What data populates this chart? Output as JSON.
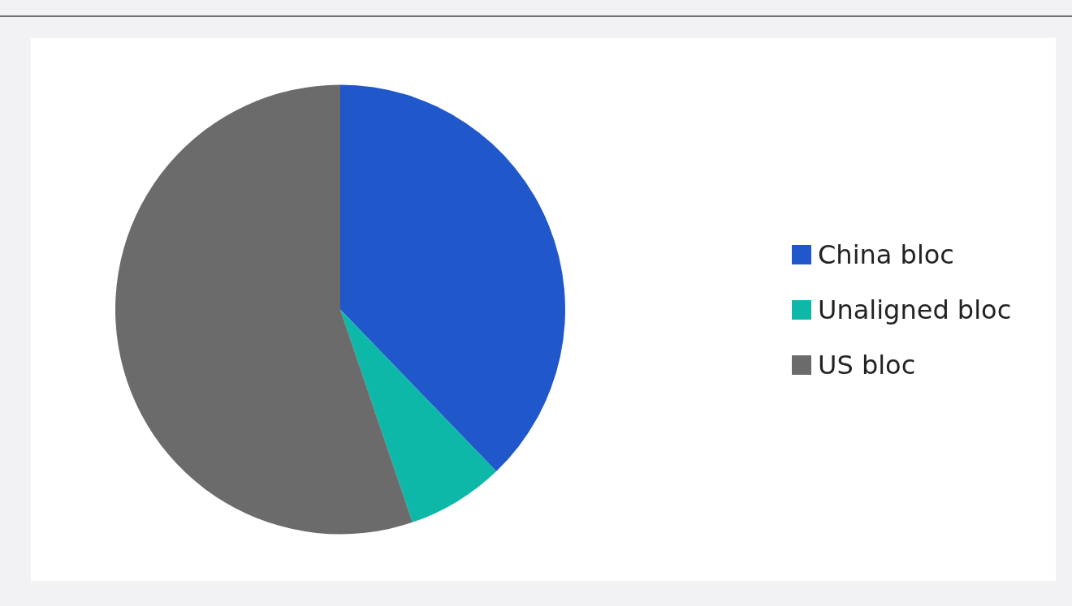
{
  "chart_data": {
    "type": "pie",
    "categories": [
      "China bloc",
      "Unaligned bloc",
      "US bloc"
    ],
    "values": [
      37.8,
      7.0,
      55.2
    ],
    "colors": [
      "#2058cc",
      "#0db8a8",
      "#6b6b6b"
    ],
    "legend": "right"
  }
}
